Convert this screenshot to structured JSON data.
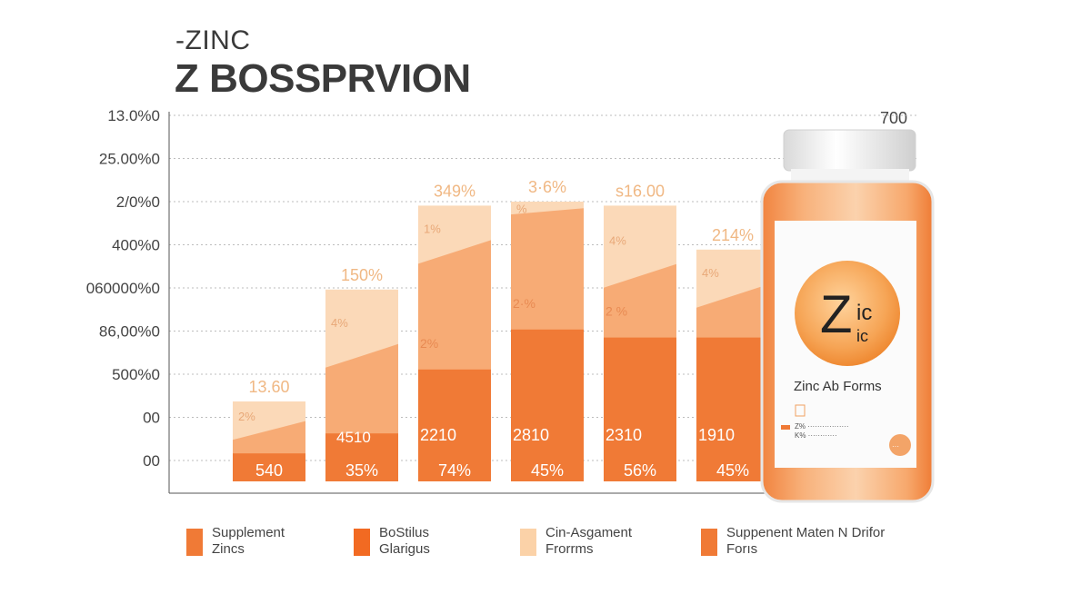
{
  "title_line1": "-ZINC",
  "title_line2": "Z BOSSPRVION",
  "corner_label": "700",
  "colors": {
    "dark": "#f07a36",
    "mid": "#f7ab75",
    "light": "#fbd9b8",
    "grid": "#bdbdbd",
    "axis": "#555555",
    "label_light": "#f0b884",
    "label_dark": "#ffffff"
  },
  "legend": [
    {
      "lines": [
        "Supplement",
        "Zincs"
      ],
      "color": "#f07a36"
    },
    {
      "lines": [
        "BoStilus",
        "Glarigus"
      ],
      "color": "#f26a22"
    },
    {
      "lines": [
        "Cin-Asgament",
        "Frorrms"
      ],
      "color": "#fbd2a8"
    },
    {
      "lines": [
        "Suppenent Maten N Drifor",
        "Forıs"
      ],
      "color": "#f07a36"
    }
  ],
  "bottle": {
    "logo_big": "Z",
    "logo_sup": "ic",
    "logo_sub": "ic",
    "label_title": "Zinc Ab Forms",
    "fine_print_1": "Z% ·················",
    "fine_print_2": "K% ············",
    "badge": "···"
  },
  "chart_data": {
    "type": "bar",
    "title": "Z BOSSPRVION",
    "y_tick_labels": [
      "13.0%0",
      "25.00%0",
      "2/0%0",
      "400%0",
      "060000%0",
      "86,00%0",
      "500%0",
      "00",
      "00"
    ],
    "grid": true,
    "bars": [
      {
        "top_label": "13.60",
        "mid_label": "2%",
        "inner_label": "",
        "bottom_label": "540",
        "top": 0.2,
        "upper": 0.14,
        "lower": 0.07
      },
      {
        "top_label": "150%",
        "mid_label": "4%",
        "inner_label": "4510",
        "bottom_label": "35%",
        "top": 0.48,
        "upper": 0.33,
        "lower": 0.12
      },
      {
        "top_label": "349%",
        "mid_label": "1%",
        "inner_label": "2%",
        "bottom_label": "74%",
        "top": 0.69,
        "upper": 0.59,
        "lower": 0.28
      },
      {
        "top_label": "3·6%",
        "mid_label": "%",
        "inner_label": "2·%",
        "bottom_label": "45%",
        "top": 0.7,
        "upper": 0.68,
        "lower": 0.38
      },
      {
        "top_label": "s16.00",
        "mid_label": "4%",
        "inner_label": "2 %",
        "bottom_label": "56%",
        "top": 0.69,
        "upper": 0.53,
        "lower": 0.36
      },
      {
        "top_label": "214%",
        "mid_label": "4%",
        "inner_label": "",
        "bottom_label": "45%",
        "top": 0.58,
        "upper": 0.48,
        "lower": 0.36
      }
    ],
    "bar_value_labels": [
      "",
      "",
      "2210",
      "2810",
      "2310",
      "1910"
    ]
  }
}
